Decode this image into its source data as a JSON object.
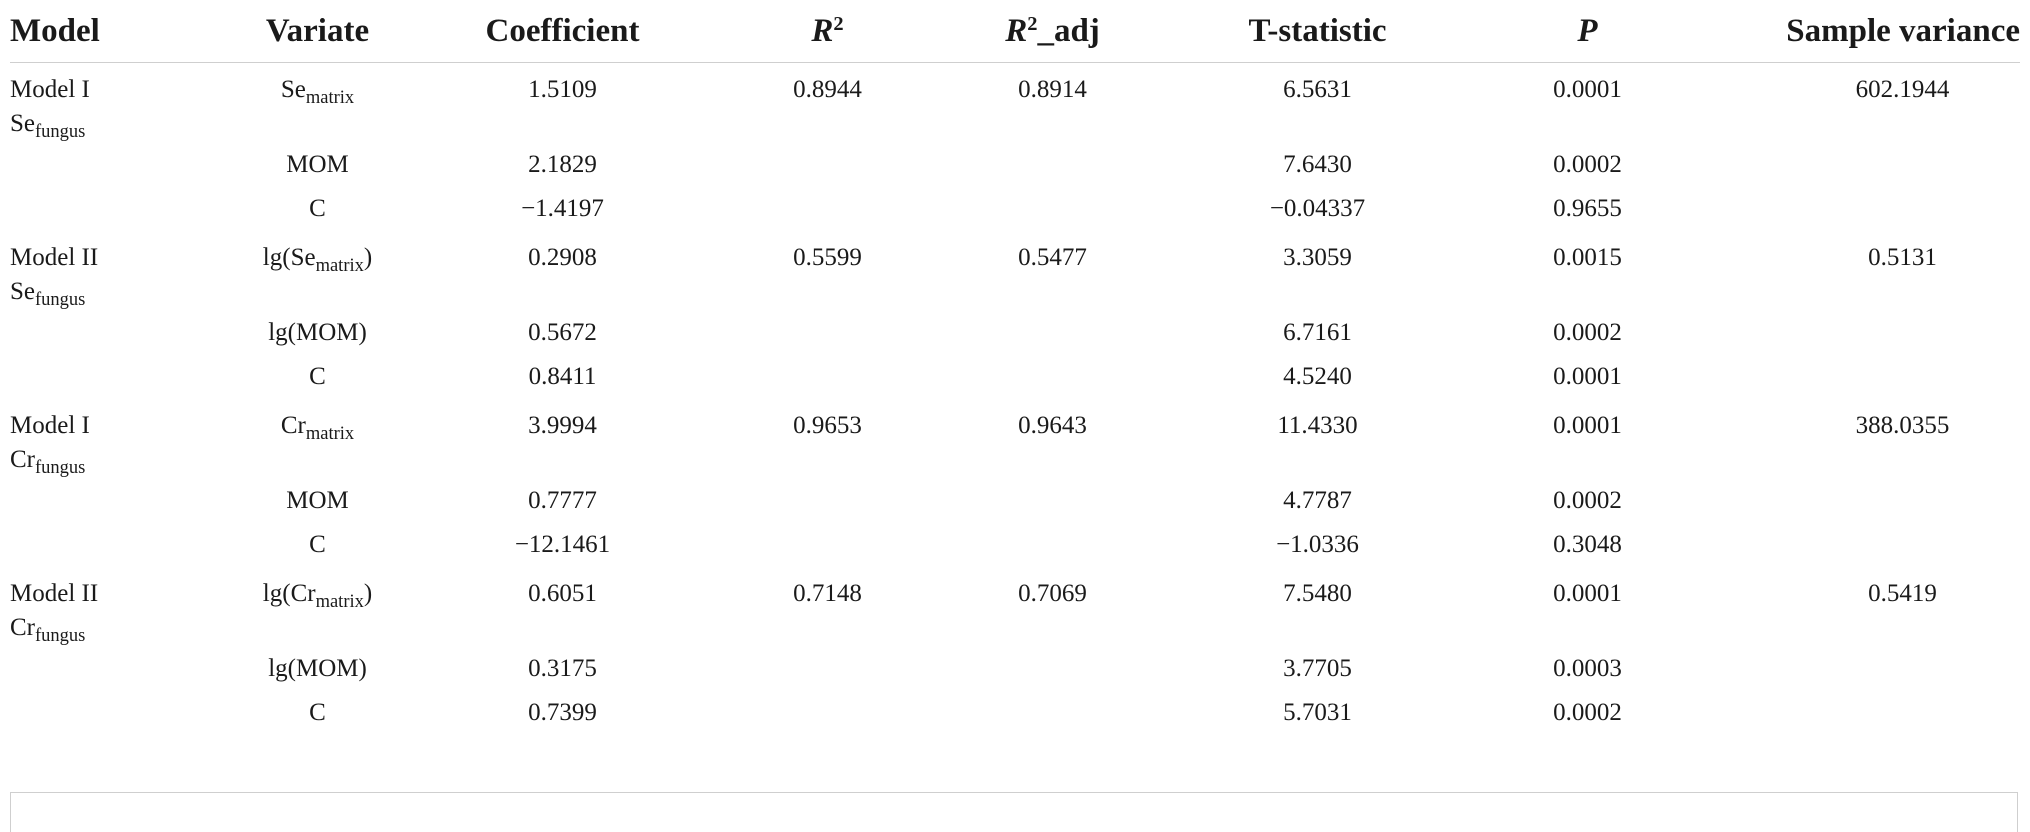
{
  "header": {
    "model": "Model",
    "variate": "Variate",
    "coefficient": "Coefficient",
    "r2_base": "R",
    "r2_sup": "2",
    "r2adj_base": "R",
    "r2adj_sup": "2",
    "r2adj_suffix": "_adj",
    "tstat": "T-statistic",
    "p": "P",
    "sample_variance": "Sample variance"
  },
  "groups": [
    {
      "model_line1": "Model I",
      "model_base": "Se",
      "model_sub": "fungus",
      "r2": "0.8944",
      "r2adj": "0.8914",
      "sample_variance": "602.1944",
      "rows": [
        {
          "var_pre": "Se",
          "var_sub": "matrix",
          "var_post": "",
          "coef": "1.5109",
          "t": "6.5631",
          "p": "0.0001"
        },
        {
          "var_pre": "MOM",
          "var_sub": "",
          "var_post": "",
          "coef": "2.1829",
          "t": "7.6430",
          "p": "0.0002"
        },
        {
          "var_pre": "C",
          "var_sub": "",
          "var_post": "",
          "coef": "−1.4197",
          "t": "−0.04337",
          "p": "0.9655"
        }
      ]
    },
    {
      "model_line1": "Model II",
      "model_base": "Se",
      "model_sub": "fungus",
      "r2": "0.5599",
      "r2adj": "0.5477",
      "sample_variance": "0.5131",
      "rows": [
        {
          "var_pre": "lg(Se",
          "var_sub": "matrix",
          "var_post": ")",
          "coef": "0.2908",
          "t": "3.3059",
          "p": "0.0015"
        },
        {
          "var_pre": "lg(MOM)",
          "var_sub": "",
          "var_post": "",
          "coef": "0.5672",
          "t": "6.7161",
          "p": "0.0002"
        },
        {
          "var_pre": "C",
          "var_sub": "",
          "var_post": "",
          "coef": "0.8411",
          "t": "4.5240",
          "p": "0.0001"
        }
      ]
    },
    {
      "model_line1": "Model I",
      "model_base": "Cr",
      "model_sub": "fungus",
      "r2": "0.9653",
      "r2adj": "0.9643",
      "sample_variance": "388.0355",
      "rows": [
        {
          "var_pre": "Cr",
          "var_sub": "matrix",
          "var_post": "",
          "coef": "3.9994",
          "t": "11.4330",
          "p": "0.0001"
        },
        {
          "var_pre": "MOM",
          "var_sub": "",
          "var_post": "",
          "coef": "0.7777",
          "t": "4.7787",
          "p": "0.0002"
        },
        {
          "var_pre": "C",
          "var_sub": "",
          "var_post": "",
          "coef": "−12.1461",
          "t": "−1.0336",
          "p": "0.3048"
        }
      ]
    },
    {
      "model_line1": "Model II",
      "model_base": "Cr",
      "model_sub": "fungus",
      "r2": "0.7148",
      "r2adj": "0.7069",
      "sample_variance": "0.5419",
      "rows": [
        {
          "var_pre": "lg(Cr",
          "var_sub": "matrix",
          "var_post": ")",
          "coef": "0.6051",
          "t": "7.5480",
          "p": "0.0001"
        },
        {
          "var_pre": "lg(MOM)",
          "var_sub": "",
          "var_post": "",
          "coef": "0.3175",
          "t": "3.7705",
          "p": "0.0003"
        },
        {
          "var_pre": "C",
          "var_sub": "",
          "var_post": "",
          "coef": "0.7399",
          "t": "5.7031",
          "p": "0.0002"
        }
      ]
    }
  ]
}
